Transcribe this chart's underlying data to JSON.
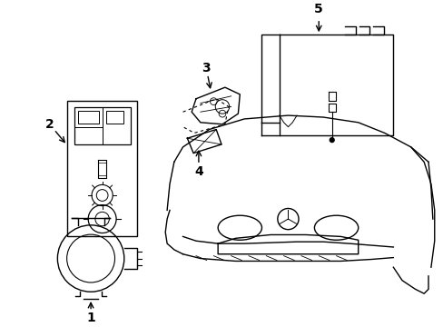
{
  "background_color": "#ffffff",
  "line_color": "#000000",
  "figsize": [
    4.89,
    3.6
  ],
  "dpi": 100,
  "label_fontsize": 10
}
